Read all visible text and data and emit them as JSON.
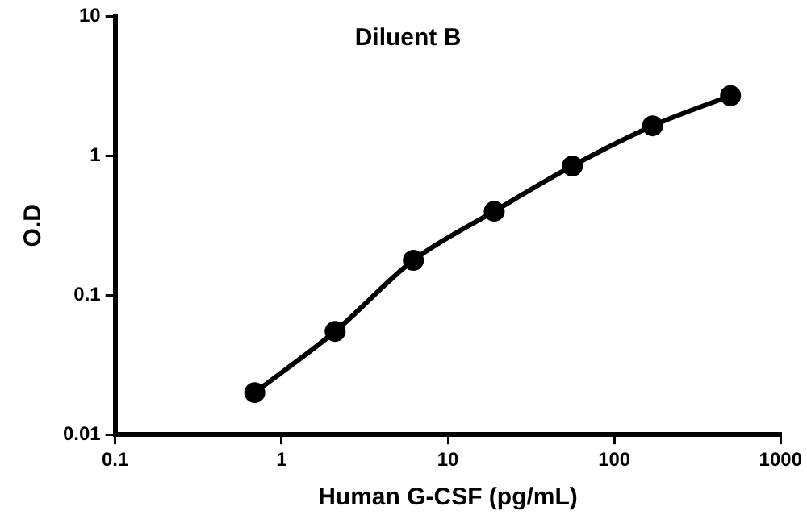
{
  "chart_data": {
    "type": "line",
    "title": "Diluent B",
    "xlabel": "Human G-CSF (pg/mL)",
    "ylabel": "O.D",
    "x": [
      0.69,
      2.1,
      6.2,
      19,
      56,
      170,
      500
    ],
    "series": [
      {
        "color": "#000000",
        "values": [
          0.02,
          0.055,
          0.178,
          0.4,
          0.845,
          1.64,
          2.7
        ]
      }
    ],
    "log": "xy",
    "xlim": [
      0.1,
      1000
    ],
    "ylim": [
      0.01,
      10
    ],
    "xticks": [
      0.1,
      1,
      10,
      100,
      1000
    ],
    "yticks": [
      0.01,
      0.1,
      1,
      10
    ],
    "grid": false,
    "legend": false,
    "marker": "circle",
    "line_style": "solid"
  }
}
